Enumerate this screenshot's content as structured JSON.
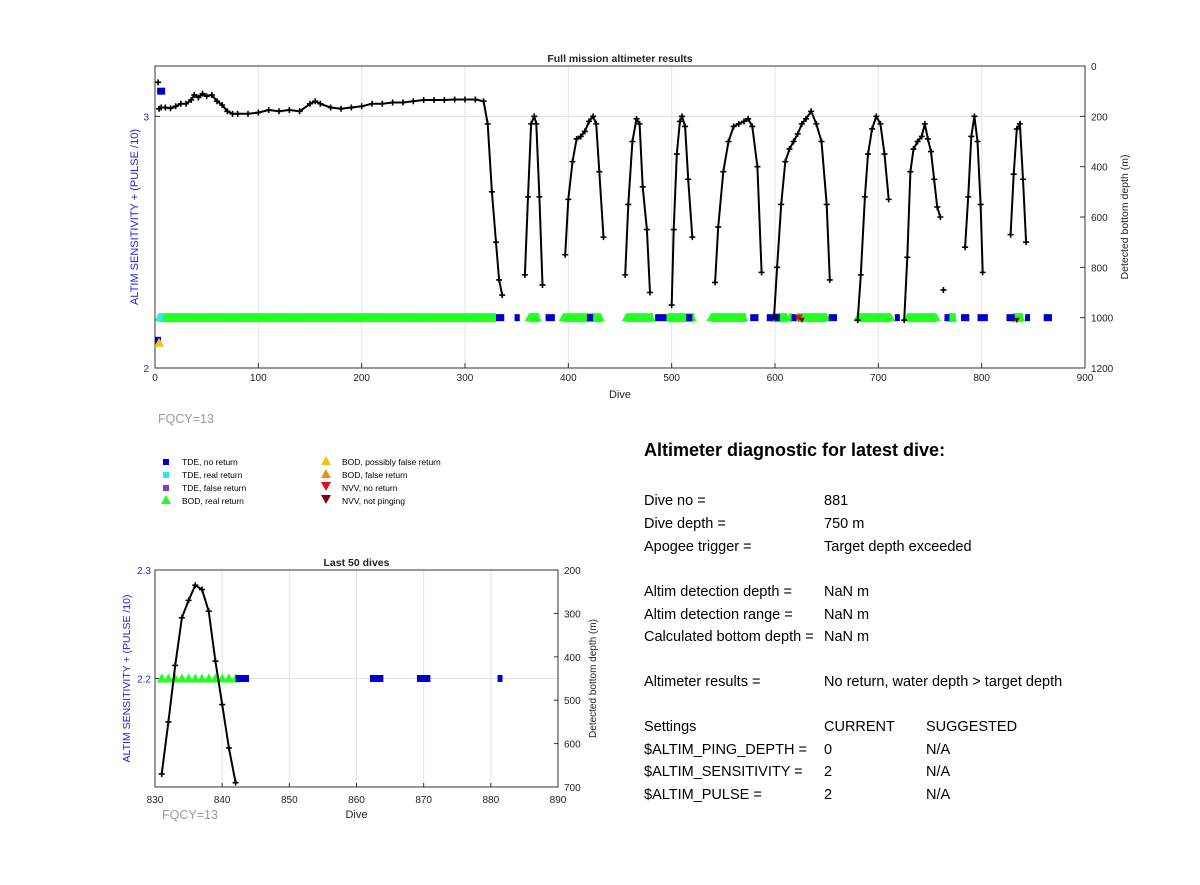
{
  "chart_data": [
    {
      "type": "scatter",
      "title": "Full mission altimeter results",
      "xlabel": "Dive",
      "ylabel_left": "ALTIM SENSITIVITY + (PULSE /10)",
      "ylabel_right": "Detected bottom depth (m)",
      "xlim": [
        0,
        900
      ],
      "ylim_left": [
        2,
        3.2
      ],
      "ylim_right_reversed": [
        0,
        1200
      ],
      "xticks": [
        "0",
        "100",
        "200",
        "300",
        "400",
        "500",
        "600",
        "700",
        "800",
        "900"
      ],
      "yticks_left": [
        "2",
        "3"
      ],
      "yticks_right": [
        "0",
        "200",
        "400",
        "600",
        "800",
        "1000",
        "1200"
      ],
      "grid": true,
      "series": [
        {
          "name": "Detected bottom depth",
          "axis": "right",
          "color": "#000000",
          "segments": [
            {
              "x": [
                4,
                6,
                10,
                15,
                20,
                25,
                30,
                35,
                38,
                42,
                46,
                50,
                55,
                60,
                65,
                70,
                75,
                80,
                90,
                100,
                110,
                120,
                130,
                140,
                150,
                155,
                160,
                170,
                180,
                190,
                200,
                210,
                220,
                230,
                240,
                250,
                260,
                270,
                280,
                290,
                300,
                310,
                318,
                322,
                326,
                330,
                333,
                336
              ],
              "y": [
                170,
                165,
                165,
                168,
                160,
                150,
                150,
                135,
                115,
                125,
                110,
                120,
                115,
                140,
                155,
                180,
                190,
                190,
                190,
                185,
                175,
                180,
                175,
                180,
                150,
                140,
                150,
                165,
                170,
                165,
                160,
                150,
                150,
                145,
                145,
                140,
                135,
                135,
                135,
                133,
                133,
                133,
                140,
                230,
                500,
                700,
                850,
                910
              ]
            },
            {
              "x": [
                358,
                361,
                364,
                367,
                369,
                372,
                375
              ],
              "y": [
                830,
                520,
                230,
                200,
                230,
                520,
                870
              ]
            },
            {
              "x": [
                397,
                400,
                404,
                408,
                412,
                416,
                420,
                424,
                427,
                430,
                434
              ],
              "y": [
                750,
                530,
                380,
                290,
                280,
                260,
                220,
                200,
                230,
                420,
                680
              ]
            },
            {
              "x": [
                455,
                458,
                462,
                466,
                469,
                472,
                476,
                479
              ],
              "y": [
                830,
                550,
                300,
                210,
                230,
                480,
                650,
                900
              ]
            },
            {
              "x": [
                500,
                502,
                505,
                508,
                510,
                513,
                516,
                520
              ],
              "y": [
                950,
                650,
                350,
                220,
                200,
                240,
                450,
                680
              ]
            },
            {
              "x": [
                542,
                545,
                550,
                555,
                560,
                565,
                570,
                574,
                578,
                583,
                587
              ],
              "y": [
                860,
                640,
                420,
                300,
                240,
                230,
                220,
                210,
                240,
                400,
                820
              ]
            },
            {
              "x": [
                599,
                602,
                606,
                610,
                614,
                618,
                622,
                626,
                630,
                635,
                640,
                645,
                650,
                653
              ],
              "y": [
                1000,
                800,
                550,
                380,
                330,
                300,
                270,
                230,
                210,
                180,
                230,
                300,
                550,
                850
              ]
            },
            {
              "x": [
                680,
                683,
                687,
                690,
                694,
                698,
                702,
                706,
                710
              ],
              "y": [
                1010,
                830,
                520,
                350,
                250,
                200,
                230,
                350,
                530
              ]
            },
            {
              "x": [
                725,
                728,
                731,
                734,
                738,
                742,
                745,
                748,
                751,
                754,
                757,
                760
              ],
              "y": [
                1010,
                760,
                420,
                330,
                300,
                280,
                230,
                290,
                340,
                450,
                560,
                600
              ]
            },
            {
              "x": [
                784,
                787,
                790,
                793,
                796,
                799,
                801
              ],
              "y": [
                720,
                520,
                280,
                200,
                300,
                550,
                820
              ]
            },
            {
              "x": [
                828,
                831,
                834,
                837,
                840,
                843
              ],
              "y": [
                670,
                430,
                250,
                230,
                450,
                700
              ]
            }
          ],
          "isolated_points": [
            {
              "x": 763,
              "y": 890
            },
            {
              "x": 3,
              "y": 65
            }
          ]
        },
        {
          "name": "BOD, real return",
          "axis": "left",
          "color": "#22ff22",
          "y": 2.2,
          "ranges": [
            [
              4,
              330
            ],
            [
              362,
              372
            ],
            [
              395,
              432
            ],
            [
              456,
              482
            ],
            [
              496,
              522
            ],
            [
              538,
              572
            ],
            [
              598,
              612
            ],
            [
              614,
              616
            ],
            [
              622,
              650
            ],
            [
              680,
              712
            ],
            [
              728,
              756
            ],
            [
              768,
              775
            ],
            [
              830,
              840
            ]
          ]
        },
        {
          "name": "TDE, no return",
          "axis": "left",
          "color": "#0000cc",
          "y": 2.2,
          "ranges": [
            [
              330,
              338
            ],
            [
              348,
              353
            ],
            [
              378,
              387
            ],
            [
              418,
              424
            ],
            [
              484,
              495
            ],
            [
              514,
              520
            ],
            [
              576,
              584
            ],
            [
              592,
              598
            ],
            [
              600,
              604
            ],
            [
              616,
              620
            ],
            [
              652,
              660
            ],
            [
              716,
              720
            ],
            [
              764,
              768
            ],
            [
              780,
              788
            ],
            [
              796,
              806
            ],
            [
              824,
              832
            ],
            [
              842,
              846
            ],
            [
              860,
              868
            ]
          ]
        },
        {
          "name": "TDE, real return",
          "axis": "left",
          "color": "#33e5f0",
          "points": [
            {
              "x": 5,
              "y": 2.2
            }
          ]
        },
        {
          "name": "BOD, possibly false return",
          "axis": "left",
          "color": "#f2c410",
          "points": [
            {
              "x": 4,
              "y": 2.1
            }
          ]
        },
        {
          "name": "NVV, no return",
          "axis": "left",
          "color": "#dd1111",
          "points": [
            {
              "x": 623,
              "y": 2.2
            }
          ]
        },
        {
          "name": "NVV, not pinging",
          "axis": "left",
          "color": "#7a0a0a",
          "points": [
            {
              "x": 626,
              "y": 2.19
            },
            {
              "x": 834,
              "y": 2.19
            }
          ]
        },
        {
          "name": "TDE, no return (offset)",
          "axis": "left",
          "color": "#0000cc",
          "points": [
            {
              "x": 5,
              "y": 3.1
            },
            {
              "x": 1,
              "y": 2.11
            }
          ]
        }
      ],
      "annotation": "FQCY=13"
    },
    {
      "type": "scatter",
      "title": "Last 50 dives",
      "xlabel": "Dive",
      "ylabel_left": "ALTIM SENSITIVITY + (PULSE /10)",
      "ylabel_right": "Detected bottom depth (m)",
      "xlim": [
        830,
        890
      ],
      "ylim_left": [
        2.1,
        2.3
      ],
      "ylim_right_reversed": [
        200,
        700
      ],
      "xticks": [
        "830",
        "840",
        "850",
        "860",
        "870",
        "880",
        "890"
      ],
      "yticks_left": [
        "2.2",
        "2.3"
      ],
      "yticks_right": [
        "200",
        "300",
        "400",
        "500",
        "600",
        "700"
      ],
      "grid": true,
      "series": [
        {
          "name": "Detected bottom depth",
          "axis": "right",
          "color": "#000000",
          "x": [
            831,
            832,
            833,
            834,
            835,
            836,
            837,
            838,
            839,
            840,
            841,
            842
          ],
          "y": [
            670,
            550,
            420,
            310,
            270,
            235,
            245,
            295,
            410,
            510,
            610,
            690
          ]
        },
        {
          "name": "BOD, real return",
          "axis": "left",
          "color": "#22ff22",
          "x": [
            831,
            832,
            833,
            834,
            835,
            836,
            837,
            838,
            839,
            840,
            841,
            842
          ],
          "y": [
            2.2,
            2.2,
            2.2,
            2.2,
            2.2,
            2.2,
            2.2,
            2.2,
            2.2,
            2.2,
            2.2,
            2.2
          ]
        },
        {
          "name": "TDE, no return",
          "axis": "left",
          "color": "#0000cc",
          "ranges": [
            [
              842,
              844
            ],
            [
              862,
              864
            ],
            [
              869,
              871
            ],
            [
              881,
              881.5
            ]
          ],
          "y": 2.2
        }
      ],
      "annotation": "FQCY=13"
    }
  ],
  "legend": {
    "items": [
      {
        "label": "TDE, no return",
        "shape": "square",
        "color": "#0000cc"
      },
      {
        "label": "TDE, real return",
        "shape": "square",
        "color": "#33e5f0"
      },
      {
        "label": "TDE, false return",
        "shape": "square",
        "color": "#8a3ad0"
      },
      {
        "label": "BOD, real return",
        "shape": "triangle-up",
        "color": "#22ff22"
      },
      {
        "label": "BOD, possibly false return",
        "shape": "triangle-up",
        "color": "#f2c410"
      },
      {
        "label": "BOD, false return",
        "shape": "triangle-up",
        "color": "#f0901a"
      },
      {
        "label": "NVV, no return",
        "shape": "triangle-down",
        "color": "#dd1111"
      },
      {
        "label": "NVV, not pinging",
        "shape": "triangle-down",
        "color": "#7a0a0a"
      }
    ]
  },
  "diagnostic": {
    "title": "Altimeter diagnostic for latest dive:",
    "dive_no_label": "Dive no =",
    "dive_no_value": "881",
    "dive_depth_label": "Dive depth =",
    "dive_depth_value": "750 m",
    "apogee_label": "Apogee trigger =",
    "apogee_value": "Target depth exceeded",
    "altim_det_depth_label": "Altim detection depth =",
    "altim_det_depth_value": "NaN m",
    "altim_det_range_label": "Altim detection range =",
    "altim_det_range_value": "NaN m",
    "calc_bottom_label": "Calculated bottom depth =",
    "calc_bottom_value": "NaN m",
    "results_label": "Altimeter results =",
    "results_value": "No return, water depth > target depth",
    "settings_header": "Settings",
    "current_header": "CURRENT",
    "suggested_header": "SUGGESTED",
    "ping_depth_label": "$ALTIM_PING_DEPTH =",
    "ping_depth_current": "0",
    "ping_depth_suggested": "N/A",
    "sensitivity_label": "$ALTIM_SENSITIVITY =",
    "sensitivity_current": "2",
    "sensitivity_suggested": "N/A",
    "pulse_label": "$ALTIM_PULSE =",
    "pulse_current": "2",
    "pulse_suggested": "N/A"
  }
}
